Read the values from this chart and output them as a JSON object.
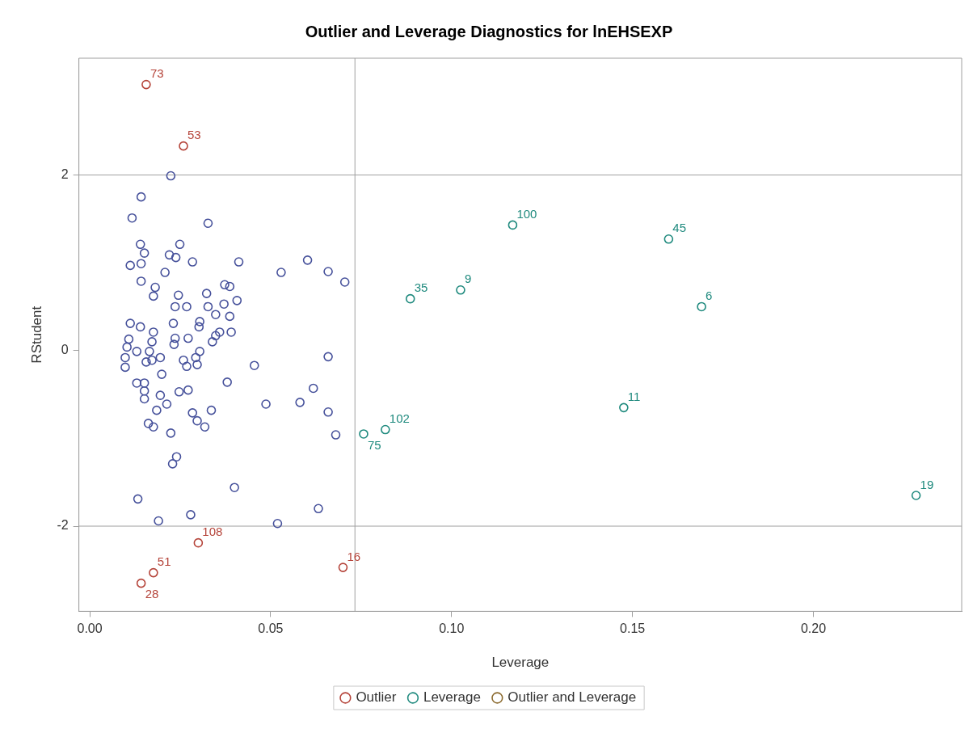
{
  "chart_data": {
    "type": "scatter",
    "title": "Outlier and Leverage Diagnostics for lnEHSEXP",
    "xlabel": "Leverage",
    "ylabel": "RStudent",
    "xlim": [
      -0.003,
      0.241
    ],
    "ylim": [
      -2.97,
      3.33
    ],
    "xticks": [
      {
        "value": 0,
        "label": "0.00"
      },
      {
        "value": 0.05,
        "label": "0.05"
      },
      {
        "value": 0.1,
        "label": "0.10"
      },
      {
        "value": 0.15,
        "label": "0.15"
      },
      {
        "value": 0.2,
        "label": "0.20"
      }
    ],
    "yticks": [
      -2,
      0,
      2
    ],
    "marker": "circle",
    "legend": "bottom",
    "ref_lines": [
      {
        "axis": "x",
        "value": 0.0733,
        "color": "#a0a0a0"
      },
      {
        "axis": "y",
        "value": 2,
        "color": "#a0a0a0"
      },
      {
        "axis": "y",
        "value": -2,
        "color": "#a0a0a0"
      }
    ],
    "series": [
      {
        "color": "#46519b",
        "x": [
          0.0224,
          0.0142,
          0.0117,
          0.0327,
          0.014,
          0.0249,
          0.0151,
          0.022,
          0.0238,
          0.0112,
          0.0142,
          0.0284,
          0.0412,
          0.0208,
          0.0529,
          0.0602,
          0.0659,
          0.0705,
          0.0142,
          0.0181,
          0.0176,
          0.0373,
          0.0387,
          0.0245,
          0.0323,
          0.0407,
          0.0236,
          0.0268,
          0.0327,
          0.0371,
          0.0348,
          0.0387,
          0.0112,
          0.014,
          0.0231,
          0.0304,
          0.0302,
          0.0176,
          0.0108,
          0.0172,
          0.0236,
          0.0272,
          0.0359,
          0.0348,
          0.0339,
          0.0391,
          0.0233,
          0.0103,
          0.013,
          0.0165,
          0.0304,
          0.0098,
          0.0098,
          0.0156,
          0.0172,
          0.0195,
          0.0259,
          0.0268,
          0.0293,
          0.0297,
          0.0455,
          0.0659,
          0.0199,
          0.013,
          0.0151,
          0.0151,
          0.0151,
          0.0195,
          0.0247,
          0.0272,
          0.038,
          0.0618,
          0.0487,
          0.0581,
          0.0213,
          0.0185,
          0.0659,
          0.0284,
          0.0297,
          0.0336,
          0.0318,
          0.0162,
          0.0176,
          0.0224,
          0.068,
          0.024,
          0.0229,
          0.04,
          0.0133,
          0.0279,
          0.019,
          0.0632,
          0.0519
        ],
        "values": [
          1.99,
          1.75,
          1.51,
          1.45,
          1.21,
          1.21,
          1.11,
          1.09,
          1.06,
          0.97,
          0.99,
          1.01,
          1.01,
          0.89,
          0.89,
          1.03,
          0.9,
          0.78,
          0.79,
          0.72,
          0.62,
          0.75,
          0.73,
          0.63,
          0.65,
          0.57,
          0.5,
          0.5,
          0.5,
          0.53,
          0.41,
          0.39,
          0.31,
          0.27,
          0.31,
          0.33,
          0.27,
          0.21,
          0.13,
          0.1,
          0.14,
          0.14,
          0.21,
          0.17,
          0.1,
          0.21,
          0.07,
          0.04,
          -0.01,
          -0.01,
          -0.01,
          -0.08,
          -0.19,
          -0.13,
          -0.11,
          -0.08,
          -0.11,
          -0.18,
          -0.08,
          -0.16,
          -0.17,
          -0.07,
          -0.27,
          -0.37,
          -0.37,
          -0.46,
          -0.55,
          -0.51,
          -0.47,
          -0.45,
          -0.36,
          -0.43,
          -0.61,
          -0.59,
          -0.61,
          -0.68,
          -0.7,
          -0.71,
          -0.8,
          -0.68,
          -0.87,
          -0.83,
          -0.87,
          -0.94,
          -0.96,
          -1.21,
          -1.29,
          -1.56,
          -1.69,
          -1.87,
          -1.94,
          -1.8,
          -1.97
        ]
      },
      {
        "name": "Outlier",
        "color": "#b5443a",
        "x": [
          0.0156,
          0.0259,
          0.03,
          0.07,
          0.0176,
          0.0142
        ],
        "values": [
          3.03,
          2.33,
          -2.19,
          -2.47,
          -2.53,
          -2.65
        ]
      },
      {
        "name": "Leverage",
        "color": "#1f8a7e",
        "x": [
          0.1169,
          0.16,
          0.0886,
          0.1025,
          0.1691,
          0.1476,
          0.0817,
          0.0757,
          0.2284
        ],
        "values": [
          1.43,
          1.27,
          0.59,
          0.69,
          0.5,
          -0.65,
          -0.9,
          -0.95,
          -1.65
        ]
      },
      {
        "name": "Outlier and Leverage",
        "color": "#8b6a2e"
      }
    ],
    "annotations": [
      {
        "text": "73",
        "x": 0.0156,
        "y": 3.03
      },
      {
        "text": "53",
        "x": 0.0259,
        "y": 2.33
      },
      {
        "text": "108",
        "x": 0.03,
        "y": -2.19
      },
      {
        "text": "16",
        "x": 0.07,
        "y": -2.47
      },
      {
        "text": "51",
        "x": 0.0176,
        "y": -2.53
      },
      {
        "text": "28",
        "x": 0.0142,
        "y": -2.65
      },
      {
        "text": "100",
        "x": 0.1169,
        "y": 1.43
      },
      {
        "text": "45",
        "x": 0.16,
        "y": 1.27
      },
      {
        "text": "35",
        "x": 0.0886,
        "y": 0.59
      },
      {
        "text": "9",
        "x": 0.1025,
        "y": 0.69
      },
      {
        "text": "6",
        "x": 0.1691,
        "y": 0.5
      },
      {
        "text": "11",
        "x": 0.1476,
        "y": -0.65
      },
      {
        "text": "102",
        "x": 0.0817,
        "y": -0.9
      },
      {
        "text": "75",
        "x": 0.0757,
        "y": -0.95
      },
      {
        "text": "19",
        "x": 0.2284,
        "y": -1.65
      }
    ]
  }
}
